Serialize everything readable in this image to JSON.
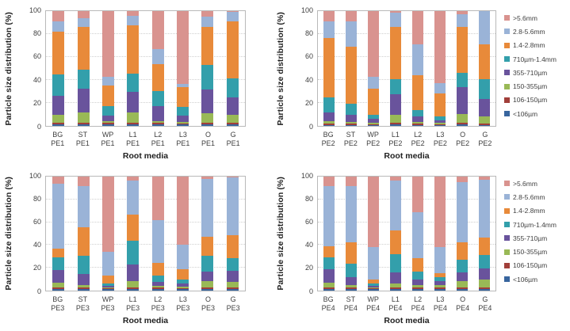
{
  "figure": {
    "y_axis_title": "Particle size distribution (%)",
    "x_axis_title": "Root media",
    "y_ticks": [
      100,
      80,
      60,
      40,
      20,
      0
    ],
    "grid_values": [
      20,
      40,
      60,
      80
    ],
    "plot_border_color": "#b9b9b9"
  },
  "legend": [
    {
      "label": ">5.6mm",
      "color": "#d9938f"
    },
    {
      "label": "2.8-5.6mm",
      "color": "#9ab3d7"
    },
    {
      "label": "1.4-2.8mm",
      "color": "#e88a3a"
    },
    {
      "label": "710µm-1.4mm",
      "color": "#339fab"
    },
    {
      "label": "355-710µm",
      "color": "#69539c"
    },
    {
      "label": "150-355µm",
      "color": "#99b956"
    },
    {
      "label": "106-150µm",
      "color": "#a13f3a"
    },
    {
      "label": "<106µm",
      "color": "#38659e"
    }
  ],
  "chart_data": [
    {
      "type": "bar",
      "stacked": true,
      "group": "PE1",
      "title": "",
      "xlabel": "Root media",
      "ylabel": "Particle size distribution (%)",
      "ylim": [
        0,
        100
      ],
      "grid": true,
      "legend_position": "right",
      "categories": [
        "BG",
        "ST",
        "WP",
        "L1",
        "L2",
        "L3",
        "O",
        "G"
      ],
      "series": [
        {
          "name": "<106µm",
          "color": "#38659e",
          "values": [
            1.5,
            1.5,
            1.5,
            1.5,
            1.5,
            1.5,
            1.5,
            1.5
          ]
        },
        {
          "name": "106-150µm",
          "color": "#a13f3a",
          "values": [
            1.5,
            1.5,
            1.0,
            1.5,
            1.0,
            0.5,
            1.5,
            1.5
          ]
        },
        {
          "name": "150-355µm",
          "color": "#99b956",
          "values": [
            6.5,
            9.0,
            2.0,
            9.0,
            1.5,
            1.5,
            8.0,
            7.0
          ]
        },
        {
          "name": "355-710µm",
          "color": "#69539c",
          "values": [
            17.0,
            20.5,
            4.5,
            18.0,
            13.5,
            5.5,
            20.5,
            15.0
          ]
        },
        {
          "name": "710µm-1.4mm",
          "color": "#339fab",
          "values": [
            18.5,
            16.5,
            8.0,
            15.5,
            13.0,
            7.5,
            21.5,
            16.5
          ]
        },
        {
          "name": "1.4-2.8mm",
          "color": "#e88a3a",
          "values": [
            37.0,
            37.0,
            18.5,
            42.0,
            23.5,
            17.0,
            33.0,
            49.5
          ]
        },
        {
          "name": "2.8-5.6mm",
          "color": "#9ab3d7",
          "values": [
            9.0,
            7.5,
            7.5,
            8.5,
            13.0,
            3.0,
            9.0,
            8.0
          ]
        },
        {
          "name": ">5.6mm",
          "color": "#d9938f",
          "values": [
            9.0,
            6.5,
            57.0,
            4.0,
            33.0,
            63.5,
            5.0,
            1.0
          ]
        }
      ]
    },
    {
      "type": "bar",
      "stacked": true,
      "group": "PE2",
      "title": "",
      "xlabel": "Root media",
      "ylabel": "Particle size distribution (%)",
      "ylim": [
        0,
        100
      ],
      "grid": true,
      "legend_position": "right",
      "categories": [
        "BG",
        "ST",
        "WP",
        "L1",
        "L2",
        "L3",
        "O",
        "G"
      ],
      "series": [
        {
          "name": "<106µm",
          "color": "#38659e",
          "values": [
            1.0,
            1.0,
            1.0,
            1.5,
            1.0,
            1.0,
            1.5,
            1.0
          ]
        },
        {
          "name": "106-150µm",
          "color": "#a13f3a",
          "values": [
            1.0,
            1.0,
            0.5,
            1.0,
            1.0,
            0.5,
            1.5,
            1.0
          ]
        },
        {
          "name": "150-355µm",
          "color": "#99b956",
          "values": [
            2.0,
            1.5,
            1.5,
            7.5,
            1.5,
            1.5,
            7.5,
            6.5
          ]
        },
        {
          "name": "355-710µm",
          "color": "#69539c",
          "values": [
            7.5,
            6.0,
            3.5,
            17.5,
            4.5,
            2.0,
            23.0,
            15.0
          ]
        },
        {
          "name": "710µm-1.4mm",
          "color": "#339fab",
          "values": [
            13.5,
            10.0,
            3.0,
            13.5,
            5.5,
            3.0,
            12.5,
            17.5
          ]
        },
        {
          "name": "1.4-2.8mm",
          "color": "#e88a3a",
          "values": [
            51.5,
            49.5,
            23.0,
            45.0,
            31.0,
            20.0,
            40.5,
            30.0
          ]
        },
        {
          "name": "2.8-5.6mm",
          "color": "#9ab3d7",
          "values": [
            14.5,
            22.0,
            10.5,
            12.5,
            26.5,
            9.5,
            10.5,
            29.0
          ]
        },
        {
          "name": ">5.6mm",
          "color": "#d9938f",
          "values": [
            9.0,
            9.0,
            57.0,
            1.5,
            29.0,
            62.5,
            3.0,
            0.0
          ]
        }
      ]
    },
    {
      "type": "bar",
      "stacked": true,
      "group": "PE3",
      "title": "",
      "xlabel": "Root media",
      "ylabel": "Particle size distribution (%)",
      "ylim": [
        0,
        100
      ],
      "grid": true,
      "legend_position": "right",
      "categories": [
        "BG",
        "ST",
        "WP",
        "L1",
        "L2",
        "L3",
        "O",
        "G"
      ],
      "series": [
        {
          "name": "<106µm",
          "color": "#38659e",
          "values": [
            1.5,
            1.5,
            1.5,
            1.5,
            1.5,
            1.5,
            1.5,
            1.5
          ]
        },
        {
          "name": "106-150µm",
          "color": "#a13f3a",
          "values": [
            1.0,
            1.0,
            0.5,
            1.5,
            1.0,
            0.5,
            1.5,
            1.5
          ]
        },
        {
          "name": "150-355µm",
          "color": "#99b956",
          "values": [
            4.5,
            2.5,
            1.0,
            5.5,
            2.0,
            1.5,
            5.5,
            5.0
          ]
        },
        {
          "name": "355-710µm",
          "color": "#69539c",
          "values": [
            11.0,
            9.5,
            1.5,
            14.5,
            3.5,
            2.5,
            8.5,
            9.5
          ]
        },
        {
          "name": "710µm-1.4mm",
          "color": "#339fab",
          "values": [
            11.0,
            16.0,
            1.5,
            20.5,
            5.0,
            3.5,
            13.5,
            11.0
          ]
        },
        {
          "name": "1.4-2.8mm",
          "color": "#e88a3a",
          "values": [
            8.0,
            25.0,
            7.5,
            23.5,
            11.0,
            9.0,
            17.0,
            20.0
          ]
        },
        {
          "name": "2.8-5.6mm",
          "color": "#9ab3d7",
          "values": [
            56.5,
            36.5,
            20.5,
            29.5,
            38.0,
            21.5,
            50.5,
            50.5
          ]
        },
        {
          "name": ">5.6mm",
          "color": "#d9938f",
          "values": [
            6.5,
            8.0,
            66.0,
            3.5,
            38.0,
            60.0,
            2.0,
            1.0
          ]
        }
      ]
    },
    {
      "type": "bar",
      "stacked": true,
      "group": "PE4",
      "title": "",
      "xlabel": "Root media",
      "ylabel": "Particle size distribution (%)",
      "ylim": [
        0,
        100
      ],
      "grid": true,
      "legend_position": "right",
      "categories": [
        "BG",
        "ST",
        "WP",
        "L1",
        "L2",
        "L3",
        "O",
        "G"
      ],
      "series": [
        {
          "name": "<106µm",
          "color": "#38659e",
          "values": [
            1.5,
            1.5,
            1.5,
            1.5,
            1.5,
            1.5,
            1.5,
            1.5
          ]
        },
        {
          "name": "106-150µm",
          "color": "#a13f3a",
          "values": [
            1.0,
            1.5,
            0.5,
            1.0,
            1.0,
            1.0,
            1.0,
            1.5
          ]
        },
        {
          "name": "150-355µm",
          "color": "#99b956",
          "values": [
            4.5,
            2.0,
            1.0,
            4.0,
            2.5,
            2.5,
            6.0,
            6.5
          ]
        },
        {
          "name": "355-710µm",
          "color": "#69539c",
          "values": [
            11.5,
            6.5,
            1.5,
            9.5,
            5.0,
            3.5,
            7.5,
            10.0
          ]
        },
        {
          "name": "710µm-1.4mm",
          "color": "#339fab",
          "values": [
            11.0,
            12.0,
            1.5,
            16.0,
            7.0,
            3.5,
            11.0,
            12.0
          ]
        },
        {
          "name": "1.4-2.8mm",
          "color": "#e88a3a",
          "values": [
            9.5,
            19.0,
            4.0,
            20.5,
            11.5,
            3.0,
            15.5,
            15.0
          ]
        },
        {
          "name": "2.8-5.6mm",
          "color": "#9ab3d7",
          "values": [
            53.0,
            49.5,
            28.0,
            44.0,
            40.5,
            23.5,
            52.5,
            51.0
          ]
        },
        {
          "name": ">5.6mm",
          "color": "#d9938f",
          "values": [
            8.0,
            8.0,
            62.0,
            3.5,
            31.0,
            61.5,
            5.0,
            2.5
          ]
        }
      ]
    }
  ]
}
